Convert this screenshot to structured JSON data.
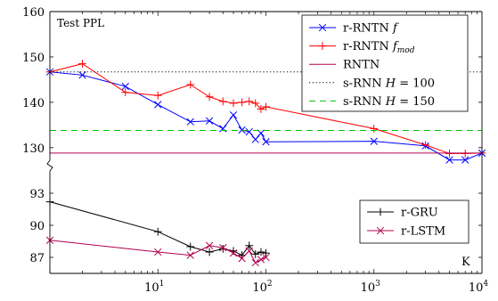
{
  "chart_data": [
    {
      "type": "line",
      "panel": "top",
      "ylabel": "Test PPL",
      "xlabel": "",
      "x_scale": "log",
      "xlim": [
        1,
        10000
      ],
      "ylim": [
        128,
        160
      ],
      "yticks": [
        130,
        140,
        150,
        160
      ],
      "legend_position": "top-right",
      "grid": false,
      "series": [
        {
          "name": "r-RNTN f",
          "legend_main": "r-RNTN ",
          "legend_italic": "f",
          "legend_sub": "",
          "color": "#0000ff",
          "marker": "x",
          "x": [
            1,
            2,
            5,
            10,
            20,
            30,
            40,
            50,
            60,
            70,
            80,
            90,
            100,
            1000,
            3000,
            5000,
            7000,
            10000
          ],
          "y": [
            146.7,
            146.0,
            143.5,
            139.5,
            135.7,
            135.9,
            134.2,
            137.2,
            133.9,
            133.5,
            131.8,
            133.2,
            131.3,
            131.4,
            130.4,
            127.3,
            127.3,
            128.8
          ]
        },
        {
          "name": "r-RNTN f_mod",
          "legend_main": "r-RNTN ",
          "legend_italic": "f",
          "legend_sub": "mod",
          "color": "#ff0000",
          "marker": "+",
          "x": [
            1,
            2,
            5,
            10,
            20,
            30,
            40,
            50,
            60,
            70,
            80,
            90,
            100,
            1000,
            3000,
            5000,
            7000,
            10000
          ],
          "y": [
            146.7,
            148.5,
            142.2,
            141.5,
            143.9,
            141.2,
            140.2,
            139.8,
            140.0,
            140.2,
            139.8,
            138.5,
            139.0,
            134.2,
            130.6,
            128.7,
            128.7,
            128.8
          ]
        },
        {
          "name": "RNTN",
          "legend_main": "RNTN",
          "color": "#b0004f",
          "style": "solid",
          "constant": 128.8
        },
        {
          "name": "s-RNN H = 100",
          "legend_main": "s-RNN ",
          "legend_italic": "H",
          "legend_rest": " = 100",
          "color": "#000000",
          "style": "dotted",
          "constant": 146.7
        },
        {
          "name": "s-RNN H = 150",
          "legend_main": "s-RNN ",
          "legend_italic": "H",
          "legend_rest": " = 150",
          "color": "#00c000",
          "style": "dashed",
          "constant": 133.8
        }
      ]
    },
    {
      "type": "line",
      "panel": "bottom",
      "xlabel": "K",
      "x_scale": "log",
      "xlim": [
        1,
        10000
      ],
      "ylim": [
        85.5,
        94
      ],
      "yticks": [
        87,
        90,
        93
      ],
      "xticks": [
        {
          "value": 10,
          "base": "10",
          "exp": "1"
        },
        {
          "value": 100,
          "base": "10",
          "exp": "2"
        },
        {
          "value": 1000,
          "base": "10",
          "exp": "3"
        },
        {
          "value": 10000,
          "base": "10",
          "exp": "4"
        }
      ],
      "legend_position": "bottom-right",
      "grid": false,
      "series": [
        {
          "name": "r-GRU",
          "color": "#000000",
          "marker": "+",
          "x": [
            1,
            10,
            20,
            30,
            40,
            50,
            60,
            70,
            80,
            90,
            100
          ],
          "y": [
            92.2,
            89.4,
            88.0,
            87.5,
            87.8,
            87.6,
            87.2,
            88.1,
            87.3,
            87.5,
            87.4
          ]
        },
        {
          "name": "r-LSTM",
          "color": "#b0004f",
          "marker": "x",
          "x": [
            1,
            10,
            20,
            30,
            40,
            50,
            60,
            70,
            80,
            90,
            100
          ],
          "y": [
            88.6,
            87.5,
            87.2,
            88.1,
            87.9,
            87.4,
            86.9,
            87.6,
            86.5,
            86.8,
            87.0
          ]
        }
      ]
    }
  ]
}
